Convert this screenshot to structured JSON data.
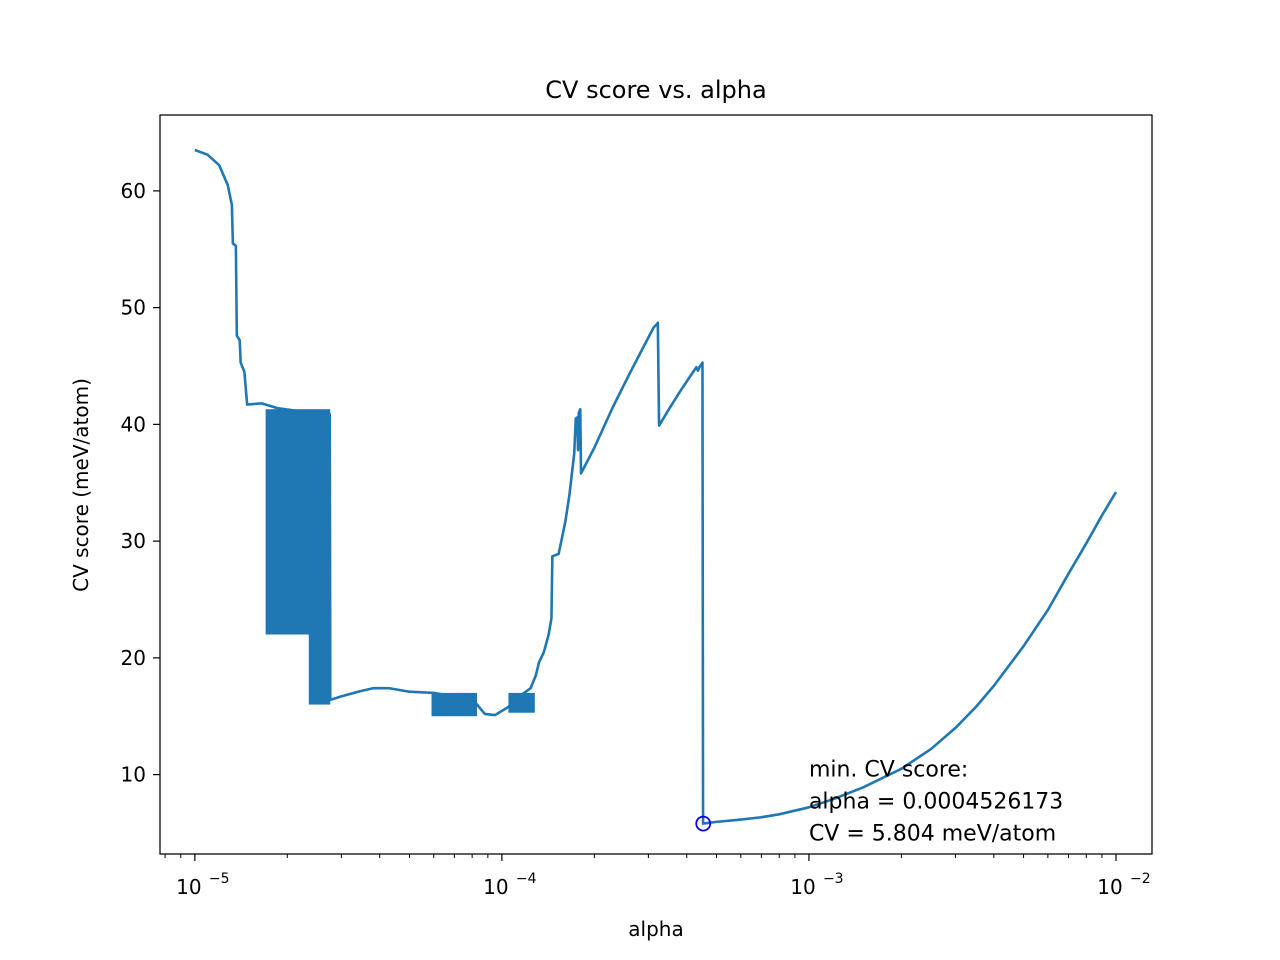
{
  "chart_data": {
    "type": "line",
    "title": "CV score vs. alpha",
    "xlabel": "alpha",
    "ylabel": "CV score (meV/atom)",
    "xscale": "log",
    "xlim": [
      7.7e-06,
      0.0131
    ],
    "ylim": [
      3.2,
      66.5
    ],
    "grid": false,
    "legend": "none",
    "xticks": [
      {
        "value": 1e-05,
        "base": "10",
        "exp": "−5"
      },
      {
        "value": 0.0001,
        "base": "10",
        "exp": "−4"
      },
      {
        "value": 0.001,
        "base": "10",
        "exp": "−3"
      },
      {
        "value": 0.01,
        "base": "10",
        "exp": "−2"
      }
    ],
    "yticks": [
      {
        "value": 10,
        "label": "10"
      },
      {
        "value": 20,
        "label": "20"
      },
      {
        "value": 30,
        "label": "30"
      },
      {
        "value": 40,
        "label": "40"
      },
      {
        "value": 50,
        "label": "50"
      },
      {
        "value": 60,
        "label": "60"
      }
    ],
    "series": [
      {
        "color": "#1f77b4",
        "points": [
          [
            1e-05,
            63.5
          ],
          [
            1.1e-05,
            63.1
          ],
          [
            1.2e-05,
            62.2
          ],
          [
            1.28e-05,
            60.5
          ],
          [
            1.32e-05,
            58.8
          ],
          [
            1.33e-05,
            55.5
          ],
          [
            1.36e-05,
            55.3
          ],
          [
            1.37e-05,
            47.6
          ],
          [
            1.4e-05,
            47.2
          ],
          [
            1.41e-05,
            45.3
          ],
          [
            1.45e-05,
            44.5
          ],
          [
            1.48e-05,
            41.7
          ],
          [
            1.65e-05,
            41.8
          ],
          [
            1.85e-05,
            41.4
          ],
          [
            2.1e-05,
            41.2
          ],
          [
            2.4e-05,
            41.0
          ],
          [
            2.75e-05,
            40.9
          ],
          [
            2.76e-05,
            20.2
          ],
          [
            2.76e-05,
            16.4
          ],
          [
            3e-05,
            16.7
          ],
          [
            3.4e-05,
            17.1
          ],
          [
            3.8e-05,
            17.4
          ],
          [
            4.3e-05,
            17.4
          ],
          [
            5e-05,
            17.1
          ],
          [
            6e-05,
            17.0
          ],
          [
            7e-05,
            16.7
          ],
          [
            8e-05,
            16.5
          ],
          [
            8.8e-05,
            15.2
          ],
          [
            9.5e-05,
            15.1
          ],
          [
            0.000105,
            15.8
          ],
          [
            0.000114,
            16.7
          ],
          [
            0.000124,
            17.4
          ],
          [
            0.000129,
            18.5
          ],
          [
            0.000132,
            19.6
          ],
          [
            0.000137,
            20.5
          ],
          [
            0.000142,
            22.0
          ],
          [
            0.000145,
            23.4
          ],
          [
            0.000146,
            28.7
          ],
          [
            0.000153,
            28.9
          ],
          [
            0.000157,
            30.3
          ],
          [
            0.000161,
            31.7
          ],
          [
            0.000166,
            34.0
          ],
          [
            0.000172,
            37.5
          ],
          [
            0.000174,
            40.5
          ],
          [
            0.000176,
            40.6
          ],
          [
            0.000177,
            37.8
          ],
          [
            0.000178,
            41.0
          ],
          [
            0.00018,
            41.3
          ],
          [
            0.000181,
            35.8
          ],
          [
            0.0002,
            38.0
          ],
          [
            0.00023,
            41.5
          ],
          [
            0.00026,
            44.3
          ],
          [
            0.00029,
            46.7
          ],
          [
            0.000312,
            48.3
          ],
          [
            0.00032,
            48.6
          ],
          [
            0.000322,
            48.7
          ],
          [
            0.000325,
            39.9
          ],
          [
            0.00035,
            41.3
          ],
          [
            0.00038,
            42.8
          ],
          [
            0.00041,
            44.1
          ],
          [
            0.00043,
            44.9
          ],
          [
            0.000435,
            44.6
          ],
          [
            0.00044,
            44.9
          ],
          [
            0.000448,
            45.2
          ],
          [
            0.00045,
            45.3
          ],
          [
            0.000452,
            5.804
          ],
          [
            0.0005,
            5.95
          ],
          [
            0.0006,
            6.15
          ],
          [
            0.0007,
            6.35
          ],
          [
            0.0008,
            6.6
          ],
          [
            0.001,
            7.2
          ],
          [
            0.0012,
            7.9
          ],
          [
            0.0015,
            8.9
          ],
          [
            0.002,
            10.5
          ],
          [
            0.0025,
            12.2
          ],
          [
            0.003,
            14.0
          ],
          [
            0.0035,
            15.8
          ],
          [
            0.004,
            17.6
          ],
          [
            0.005,
            21.0
          ],
          [
            0.006,
            24.1
          ],
          [
            0.007,
            27.2
          ],
          [
            0.008,
            29.8
          ],
          [
            0.009,
            32.2
          ],
          [
            0.01,
            34.2
          ]
        ]
      }
    ],
    "oscillation_bands": [
      {
        "x_start": 1.7e-05,
        "x_end": 2.76e-05,
        "y_top": 41.3,
        "y_bottom": 22.0
      },
      {
        "x_start": 2.35e-05,
        "x_end": 2.76e-05,
        "y_top": 22.0,
        "y_bottom": 16.0
      },
      {
        "x_start": 5.9e-05,
        "x_end": 8.3e-05,
        "y_top": 17.0,
        "y_bottom": 15.0
      },
      {
        "x_start": 0.000105,
        "x_end": 0.000128,
        "y_top": 17.0,
        "y_bottom": 15.3
      }
    ],
    "marker": {
      "x": 0.0004526173,
      "y": 5.804,
      "color": "#0000ff"
    },
    "annotation": {
      "x": 0.001,
      "y": 4.0,
      "lines": [
        "min. CV score:",
        "alpha = 0.0004526173",
        "CV = 5.804 meV/atom"
      ]
    }
  }
}
